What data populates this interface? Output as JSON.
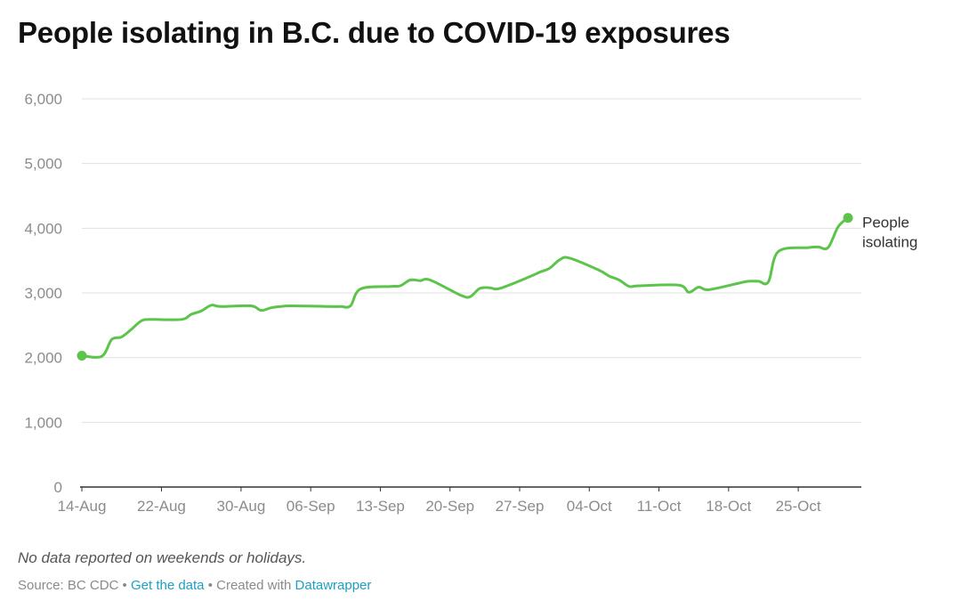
{
  "title": "People isolating in B.C. due to COVID-19 exposures",
  "notes": "No data reported on weekends or holidays.",
  "footer": {
    "source": "Source: BC CDC",
    "sep": " • ",
    "get_data": "Get the data",
    "created": "Created with",
    "tool": "Datawrapper"
  },
  "colors": {
    "line": "#5cc44a",
    "grid": "#e0e0e0",
    "axis": "#333333"
  },
  "chart_data": {
    "type": "line",
    "title": "People isolating in B.C. due to COVID-19 exposures",
    "xlabel": "",
    "ylabel": "",
    "ylim": [
      0,
      6000
    ],
    "grid": true,
    "yticks": [
      0,
      1000,
      2000,
      3000,
      4000,
      5000,
      6000
    ],
    "ytick_labels": [
      "0",
      "1,000",
      "2,000",
      "3,000",
      "4,000",
      "5,000",
      "6,000"
    ],
    "xticks": [
      {
        "date": "2020-08-14",
        "label": "14-Aug"
      },
      {
        "date": "2020-08-22",
        "label": "22-Aug"
      },
      {
        "date": "2020-08-30",
        "label": "30-Aug"
      },
      {
        "date": "2020-09-06",
        "label": "06-Sep"
      },
      {
        "date": "2020-09-13",
        "label": "13-Sep"
      },
      {
        "date": "2020-09-20",
        "label": "20-Sep"
      },
      {
        "date": "2020-09-27",
        "label": "27-Sep"
      },
      {
        "date": "2020-10-04",
        "label": "04-Oct"
      },
      {
        "date": "2020-10-11",
        "label": "11-Oct"
      },
      {
        "date": "2020-10-18",
        "label": "18-Oct"
      },
      {
        "date": "2020-10-25",
        "label": "25-Oct"
      }
    ],
    "series": [
      {
        "name": "People isolating",
        "x": [
          "2020-08-14",
          "2020-08-16",
          "2020-08-17",
          "2020-08-18",
          "2020-08-19",
          "2020-08-20",
          "2020-08-21",
          "2020-08-24",
          "2020-08-25",
          "2020-08-26",
          "2020-08-27",
          "2020-08-28",
          "2020-08-31",
          "2020-09-01",
          "2020-09-02",
          "2020-09-03",
          "2020-09-04",
          "2020-09-08",
          "2020-09-09",
          "2020-09-10",
          "2020-09-11",
          "2020-09-14",
          "2020-09-15",
          "2020-09-16",
          "2020-09-17",
          "2020-09-18",
          "2020-09-21",
          "2020-09-22",
          "2020-09-23",
          "2020-09-24",
          "2020-09-25",
          "2020-09-28",
          "2020-09-29",
          "2020-09-30",
          "2020-10-01",
          "2020-10-02",
          "2020-10-05",
          "2020-10-06",
          "2020-10-07",
          "2020-10-08",
          "2020-10-09",
          "2020-10-13",
          "2020-10-14",
          "2020-10-15",
          "2020-10-16",
          "2020-10-19",
          "2020-10-20",
          "2020-10-21",
          "2020-10-22",
          "2020-10-23",
          "2020-10-26",
          "2020-10-27",
          "2020-10-28",
          "2020-10-29",
          "2020-10-30"
        ],
        "values": [
          2030,
          2020,
          2280,
          2320,
          2440,
          2570,
          2590,
          2590,
          2670,
          2720,
          2810,
          2790,
          2800,
          2730,
          2770,
          2790,
          2800,
          2790,
          2790,
          2800,
          3060,
          3100,
          3110,
          3200,
          3190,
          3200,
          2970,
          2940,
          3070,
          3080,
          3070,
          3250,
          3320,
          3380,
          3510,
          3540,
          3350,
          3260,
          3200,
          3100,
          3110,
          3120,
          3010,
          3090,
          3050,
          3150,
          3180,
          3180,
          3170,
          3640,
          3700,
          3710,
          3700,
          4020,
          4160
        ]
      }
    ]
  }
}
